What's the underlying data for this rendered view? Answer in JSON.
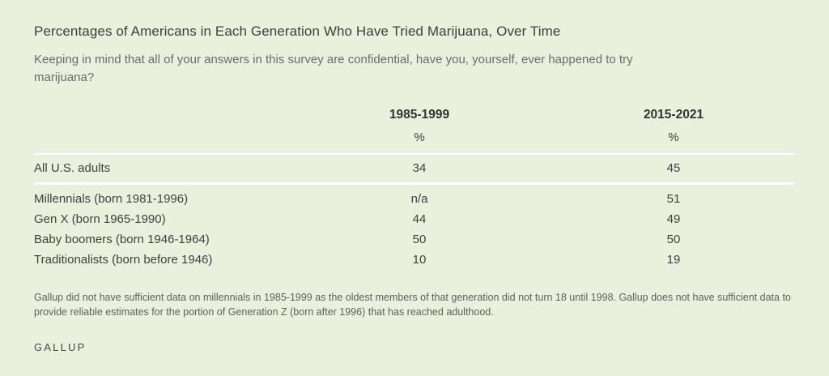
{
  "colors": {
    "background": "#e9f0dc",
    "rule": "#ffffff",
    "title_text": "#3e3f3f",
    "muted_text": "#6a6c6b"
  },
  "chart_data": {
    "type": "table",
    "title": "Percentages of Americans in Each Generation Who Have Tried Marijuana, Over Time",
    "subtitle": "Keeping in mind that all of your answers in this survey are confidential, have you, yourself, ever happened to try marijuana?",
    "columns": [
      "",
      "1985-1999",
      "2015-2021"
    ],
    "unit_row": [
      "",
      "%",
      "%"
    ],
    "rows": [
      {
        "label": "All U.S. adults",
        "values": [
          "34",
          "45"
        ],
        "group": "summary"
      },
      {
        "label": "Millennials (born 1981-1996)",
        "values": [
          "n/a",
          "51"
        ],
        "group": "generation"
      },
      {
        "label": "Gen X (born 1965-1990)",
        "values": [
          "44",
          "49"
        ],
        "group": "generation"
      },
      {
        "label": "Baby boomers (born 1946-1964)",
        "values": [
          "50",
          "50"
        ],
        "group": "generation"
      },
      {
        "label": "Traditionalists (born before 1946)",
        "values": [
          "10",
          "19"
        ],
        "group": "generation"
      }
    ],
    "footnote": "Gallup did not have sufficient data on millennials in 1985-1999 as the oldest members of that generation did not turn 18 until 1998. Gallup does not have sufficient data to provide reliable estimates for the portion of Generation Z (born after 1996) that has reached adulthood.",
    "source": "GALLUP",
    "layout": {
      "grid": "off",
      "legend": "none",
      "value_alignment": "center"
    }
  }
}
